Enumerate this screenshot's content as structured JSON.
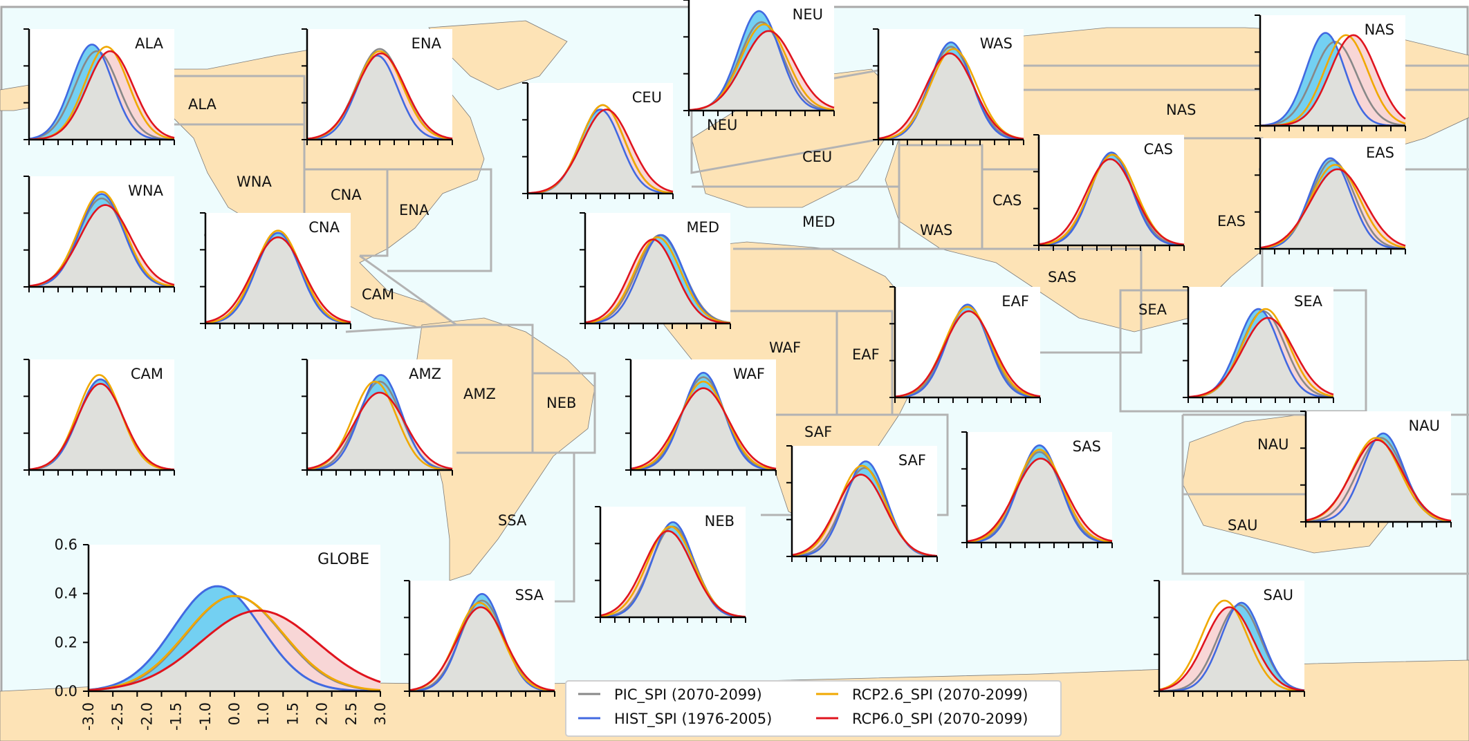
{
  "colors": {
    "ocean": "#eefcfd",
    "land": "#fde3b6",
    "region_border": "#b3b3b3",
    "frame": "#a9a9a9",
    "PIC_SPI": "#888888",
    "HIST_SPI": "#4169e1",
    "RCP2.6_SPI": "#f0a800",
    "RCP6.0_SPI": "#e0141e",
    "hist_fill": "#5ac8f0",
    "future_fill": "#f5c8c8",
    "overlap_fill": "#dfe0dc"
  },
  "legend": {
    "items": [
      {
        "key": "PIC_SPI",
        "label": "PIC_SPI (2070-2099)"
      },
      {
        "key": "HIST_SPI",
        "label": "HIST_SPI (1976-2005)"
      },
      {
        "key": "RCP2.6_SPI",
        "label": "RCP2.6_SPI (2070-2099)"
      },
      {
        "key": "RCP6.0_SPI",
        "label": "RCP6.0_SPI (2070-2099)"
      }
    ]
  },
  "map_labels": [
    "ALA",
    "WNA",
    "CNA",
    "ENA",
    "CAM",
    "AMZ",
    "NEB",
    "SSA",
    "NEU",
    "CEU",
    "MED",
    "WAF",
    "EAF",
    "SAF",
    "WAS",
    "CAS",
    "SAS",
    "EAS",
    "SEA",
    "NAS",
    "NAU",
    "SAU"
  ],
  "chart_data": [
    {
      "type": "line",
      "title": "GLOBE",
      "xlim": [
        -3.0,
        3.0
      ],
      "ylim": [
        0,
        0.6
      ],
      "xticks": [
        "-3.0",
        "-2.5",
        "-2.0",
        "-1.5",
        "-1.0",
        "0.0",
        "1.0",
        "1.5",
        "2.0",
        "2.5",
        "3.0"
      ],
      "yticks": [
        "0.0",
        "0.2",
        "0.4",
        "0.6"
      ],
      "series": [
        {
          "name": "PIC_SPI (2070-2099)",
          "peak_x": 0.0,
          "peak_y": 0.39,
          "width": 0.98
        },
        {
          "name": "HIST_SPI (1976-2005)",
          "peak_x": -0.35,
          "peak_y": 0.43,
          "width": 0.9
        },
        {
          "name": "RCP2.6_SPI (2070-2099)",
          "peak_x": 0.0,
          "peak_y": 0.39,
          "width": 1.0
        },
        {
          "name": "RCP6.0_SPI (2070-2099)",
          "peak_x": 0.5,
          "peak_y": 0.33,
          "width": 1.2
        }
      ]
    },
    {
      "type": "line",
      "title": "ALA",
      "series": [
        {
          "name": "PIC_SPI (2070-2099)",
          "peak_x": -0.2,
          "peak_y": 0.4,
          "width": 0.9
        },
        {
          "name": "HIST_SPI (1976-2005)",
          "peak_x": -0.4,
          "peak_y": 0.43,
          "width": 0.85
        },
        {
          "name": "RCP2.6_SPI (2070-2099)",
          "peak_x": 0.2,
          "peak_y": 0.42,
          "width": 0.9
        },
        {
          "name": "RCP6.0_SPI (2070-2099)",
          "peak_x": 0.35,
          "peak_y": 0.4,
          "width": 0.95
        }
      ]
    },
    {
      "type": "line",
      "title": "ENA",
      "series": [
        {
          "name": "PIC_SPI (2070-2099)",
          "peak_x": 0.0,
          "peak_y": 0.41,
          "width": 0.95
        },
        {
          "name": "HIST_SPI (1976-2005)",
          "peak_x": -0.1,
          "peak_y": 0.38,
          "width": 0.85
        },
        {
          "name": "RCP2.6_SPI (2070-2099)",
          "peak_x": 0.0,
          "peak_y": 0.4,
          "width": 0.95
        },
        {
          "name": "RCP6.0_SPI (2070-2099)",
          "peak_x": 0.05,
          "peak_y": 0.39,
          "width": 1.0
        }
      ]
    },
    {
      "type": "line",
      "title": "CEU",
      "series": [
        {
          "name": "PIC_SPI (2070-2099)",
          "peak_x": 0.1,
          "peak_y": 0.4,
          "width": 0.9
        },
        {
          "name": "HIST_SPI (1976-2005)",
          "peak_x": 0.0,
          "peak_y": 0.38,
          "width": 0.85
        },
        {
          "name": "RCP2.6_SPI (2070-2099)",
          "peak_x": 0.1,
          "peak_y": 0.4,
          "width": 0.9
        },
        {
          "name": "RCP6.0_SPI (2070-2099)",
          "peak_x": 0.25,
          "peak_y": 0.38,
          "width": 1.0
        }
      ]
    },
    {
      "type": "line",
      "title": "NEU",
      "series": [
        {
          "name": "PIC_SPI (2070-2099)",
          "peak_x": 0.0,
          "peak_y": 0.4,
          "width": 0.9
        },
        {
          "name": "HIST_SPI (1976-2005)",
          "peak_x": -0.1,
          "peak_y": 0.45,
          "width": 0.85
        },
        {
          "name": "RCP2.6_SPI (2070-2099)",
          "peak_x": 0.1,
          "peak_y": 0.39,
          "width": 0.95
        },
        {
          "name": "RCP6.0_SPI (2070-2099)",
          "peak_x": 0.3,
          "peak_y": 0.36,
          "width": 1.05
        }
      ]
    },
    {
      "type": "line",
      "title": "WAS",
      "series": [
        {
          "name": "PIC_SPI (2070-2099)",
          "peak_x": 0.0,
          "peak_y": 0.42,
          "width": 0.9
        },
        {
          "name": "HIST_SPI (1976-2005)",
          "peak_x": 0.0,
          "peak_y": 0.44,
          "width": 0.85
        },
        {
          "name": "RCP2.6_SPI (2070-2099)",
          "peak_x": 0.1,
          "peak_y": 0.41,
          "width": 0.95
        },
        {
          "name": "RCP6.0_SPI (2070-2099)",
          "peak_x": -0.05,
          "peak_y": 0.39,
          "width": 1.0
        }
      ]
    },
    {
      "type": "line",
      "title": "NAS",
      "series": [
        {
          "name": "PIC_SPI (2070-2099)",
          "peak_x": 0.1,
          "peak_y": 0.38,
          "width": 0.9
        },
        {
          "name": "HIST_SPI (1976-2005)",
          "peak_x": -0.3,
          "peak_y": 0.42,
          "width": 0.8
        },
        {
          "name": "RCP2.6_SPI (2070-2099)",
          "peak_x": 0.55,
          "peak_y": 0.41,
          "width": 0.9
        },
        {
          "name": "RCP6.0_SPI (2070-2099)",
          "peak_x": 0.85,
          "peak_y": 0.41,
          "width": 0.95
        }
      ]
    },
    {
      "type": "line",
      "title": "WNA",
      "series": [
        {
          "name": "PIC_SPI (2070-2099)",
          "peak_x": 0.0,
          "peak_y": 0.4,
          "width": 0.95
        },
        {
          "name": "HIST_SPI (1976-2005)",
          "peak_x": 0.0,
          "peak_y": 0.42,
          "width": 0.9
        },
        {
          "name": "RCP2.6_SPI (2070-2099)",
          "peak_x": 0.0,
          "peak_y": 0.43,
          "width": 0.95
        },
        {
          "name": "RCP6.0_SPI (2070-2099)",
          "peak_x": 0.15,
          "peak_y": 0.37,
          "width": 1.05
        }
      ]
    },
    {
      "type": "line",
      "title": "CNA",
      "series": [
        {
          "name": "PIC_SPI (2070-2099)",
          "peak_x": 0.0,
          "peak_y": 0.41,
          "width": 0.95
        },
        {
          "name": "HIST_SPI (1976-2005)",
          "peak_x": 0.0,
          "peak_y": 0.41,
          "width": 0.9
        },
        {
          "name": "RCP2.6_SPI (2070-2099)",
          "peak_x": 0.0,
          "peak_y": 0.42,
          "width": 0.95
        },
        {
          "name": "RCP6.0_SPI (2070-2099)",
          "peak_x": 0.0,
          "peak_y": 0.39,
          "width": 1.05
        }
      ]
    },
    {
      "type": "line",
      "title": "MED",
      "series": [
        {
          "name": "PIC_SPI (2070-2099)",
          "peak_x": 0.1,
          "peak_y": 0.4,
          "width": 0.95
        },
        {
          "name": "HIST_SPI (1976-2005)",
          "peak_x": 0.15,
          "peak_y": 0.4,
          "width": 0.9
        },
        {
          "name": "RCP2.6_SPI (2070-2099)",
          "peak_x": 0.0,
          "peak_y": 0.39,
          "width": 0.95
        },
        {
          "name": "RCP6.0_SPI (2070-2099)",
          "peak_x": -0.2,
          "peak_y": 0.38,
          "width": 0.95
        }
      ]
    },
    {
      "type": "line",
      "title": "CAS",
      "series": [
        {
          "name": "PIC_SPI (2070-2099)",
          "peak_x": 0.0,
          "peak_y": 0.41,
          "width": 0.9
        },
        {
          "name": "HIST_SPI (1976-2005)",
          "peak_x": 0.0,
          "peak_y": 0.42,
          "width": 0.85
        },
        {
          "name": "RCP2.6_SPI (2070-2099)",
          "peak_x": 0.05,
          "peak_y": 0.41,
          "width": 0.95
        },
        {
          "name": "RCP6.0_SPI (2070-2099)",
          "peak_x": -0.05,
          "peak_y": 0.39,
          "width": 1.0
        }
      ]
    },
    {
      "type": "line",
      "title": "EAS",
      "series": [
        {
          "name": "PIC_SPI (2070-2099)",
          "peak_x": 0.0,
          "peak_y": 0.4,
          "width": 0.9
        },
        {
          "name": "HIST_SPI (1976-2005)",
          "peak_x": -0.1,
          "peak_y": 0.41,
          "width": 0.85
        },
        {
          "name": "RCP2.6_SPI (2070-2099)",
          "peak_x": 0.1,
          "peak_y": 0.38,
          "width": 1.0
        },
        {
          "name": "RCP6.0_SPI (2070-2099)",
          "peak_x": 0.2,
          "peak_y": 0.36,
          "width": 1.1
        }
      ]
    },
    {
      "type": "line",
      "title": "CAM",
      "series": [
        {
          "name": "PIC_SPI (2070-2099)",
          "peak_x": -0.05,
          "peak_y": 0.41,
          "width": 0.9
        },
        {
          "name": "HIST_SPI (1976-2005)",
          "peak_x": -0.05,
          "peak_y": 0.41,
          "width": 0.9
        },
        {
          "name": "RCP2.6_SPI (2070-2099)",
          "peak_x": -0.1,
          "peak_y": 0.43,
          "width": 0.9
        },
        {
          "name": "RCP6.0_SPI (2070-2099)",
          "peak_x": -0.05,
          "peak_y": 0.39,
          "width": 0.95
        }
      ]
    },
    {
      "type": "line",
      "title": "AMZ",
      "series": [
        {
          "name": "PIC_SPI (2070-2099)",
          "peak_x": 0.0,
          "peak_y": 0.4,
          "width": 0.9
        },
        {
          "name": "HIST_SPI (1976-2005)",
          "peak_x": 0.05,
          "peak_y": 0.43,
          "width": 0.85
        },
        {
          "name": "RCP2.6_SPI (2070-2099)",
          "peak_x": -0.2,
          "peak_y": 0.4,
          "width": 0.9
        },
        {
          "name": "RCP6.0_SPI (2070-2099)",
          "peak_x": 0.0,
          "peak_y": 0.35,
          "width": 1.05
        }
      ]
    },
    {
      "type": "line",
      "title": "WAF",
      "series": [
        {
          "name": "PIC_SPI (2070-2099)",
          "peak_x": 0.0,
          "peak_y": 0.42,
          "width": 0.9
        },
        {
          "name": "HIST_SPI (1976-2005)",
          "peak_x": 0.0,
          "peak_y": 0.44,
          "width": 0.85
        },
        {
          "name": "RCP2.6_SPI (2070-2099)",
          "peak_x": 0.0,
          "peak_y": 0.4,
          "width": 0.95
        },
        {
          "name": "RCP6.0_SPI (2070-2099)",
          "peak_x": 0.0,
          "peak_y": 0.37,
          "width": 1.05
        }
      ]
    },
    {
      "type": "line",
      "title": "EAF",
      "series": [
        {
          "name": "PIC_SPI (2070-2099)",
          "peak_x": 0.0,
          "peak_y": 0.41,
          "width": 0.9
        },
        {
          "name": "HIST_SPI (1976-2005)",
          "peak_x": 0.0,
          "peak_y": 0.42,
          "width": 0.85
        },
        {
          "name": "RCP2.6_SPI (2070-2099)",
          "peak_x": 0.0,
          "peak_y": 0.41,
          "width": 0.95
        },
        {
          "name": "RCP6.0_SPI (2070-2099)",
          "peak_x": 0.05,
          "peak_y": 0.39,
          "width": 1.0
        }
      ]
    },
    {
      "type": "line",
      "title": "SEA",
      "series": [
        {
          "name": "PIC_SPI (2070-2099)",
          "peak_x": 0.1,
          "peak_y": 0.39,
          "width": 0.9
        },
        {
          "name": "HIST_SPI (1976-2005)",
          "peak_x": -0.1,
          "peak_y": 0.4,
          "width": 0.85
        },
        {
          "name": "RCP2.6_SPI (2070-2099)",
          "peak_x": 0.2,
          "peak_y": 0.4,
          "width": 0.95
        },
        {
          "name": "RCP6.0_SPI (2070-2099)",
          "peak_x": 0.3,
          "peak_y": 0.36,
          "width": 1.05
        }
      ]
    },
    {
      "type": "line",
      "title": "NAU",
      "series": [
        {
          "name": "PIC_SPI (2070-2099)",
          "peak_x": 0.1,
          "peak_y": 0.38,
          "width": 0.95
        },
        {
          "name": "HIST_SPI (1976-2005)",
          "peak_x": 0.2,
          "peak_y": 0.4,
          "width": 0.85
        },
        {
          "name": "RCP2.6_SPI (2070-2099)",
          "peak_x": -0.1,
          "peak_y": 0.38,
          "width": 1.0
        },
        {
          "name": "RCP6.0_SPI (2070-2099)",
          "peak_x": -0.05,
          "peak_y": 0.37,
          "width": 1.05
        }
      ]
    },
    {
      "type": "line",
      "title": "SAF",
      "series": [
        {
          "name": "PIC_SPI (2070-2099)",
          "peak_x": 0.0,
          "peak_y": 0.4,
          "width": 0.9
        },
        {
          "name": "HIST_SPI (1976-2005)",
          "peak_x": 0.05,
          "peak_y": 0.43,
          "width": 0.85
        },
        {
          "name": "RCP2.6_SPI (2070-2099)",
          "peak_x": -0.1,
          "peak_y": 0.41,
          "width": 0.95
        },
        {
          "name": "RCP6.0_SPI (2070-2099)",
          "peak_x": -0.15,
          "peak_y": 0.37,
          "width": 1.0
        }
      ]
    },
    {
      "type": "line",
      "title": "SAS",
      "series": [
        {
          "name": "PIC_SPI (2070-2099)",
          "peak_x": 0.0,
          "peak_y": 0.41,
          "width": 0.9
        },
        {
          "name": "HIST_SPI (1976-2005)",
          "peak_x": 0.0,
          "peak_y": 0.44,
          "width": 0.85
        },
        {
          "name": "RCP2.6_SPI (2070-2099)",
          "peak_x": 0.0,
          "peak_y": 0.42,
          "width": 0.95
        },
        {
          "name": "RCP6.0_SPI (2070-2099)",
          "peak_x": 0.05,
          "peak_y": 0.38,
          "width": 1.05
        }
      ]
    },
    {
      "type": "line",
      "title": "NEB",
      "series": [
        {
          "name": "PIC_SPI (2070-2099)",
          "peak_x": 0.0,
          "peak_y": 0.41,
          "width": 0.9
        },
        {
          "name": "HIST_SPI (1976-2005)",
          "peak_x": 0.0,
          "peak_y": 0.43,
          "width": 0.85
        },
        {
          "name": "RCP2.6_SPI (2070-2099)",
          "peak_x": -0.1,
          "peak_y": 0.41,
          "width": 0.95
        },
        {
          "name": "RCP6.0_SPI (2070-2099)",
          "peak_x": -0.2,
          "peak_y": 0.39,
          "width": 1.0
        }
      ]
    },
    {
      "type": "line",
      "title": "SSA",
      "series": [
        {
          "name": "PIC_SPI (2070-2099)",
          "peak_x": 0.0,
          "peak_y": 0.41,
          "width": 0.9
        },
        {
          "name": "HIST_SPI (1976-2005)",
          "peak_x": 0.0,
          "peak_y": 0.44,
          "width": 0.85
        },
        {
          "name": "RCP2.6_SPI (2070-2099)",
          "peak_x": -0.1,
          "peak_y": 0.4,
          "width": 0.95
        },
        {
          "name": "RCP6.0_SPI (2070-2099)",
          "peak_x": -0.05,
          "peak_y": 0.38,
          "width": 1.0
        }
      ]
    },
    {
      "type": "line",
      "title": "SAU",
      "series": [
        {
          "name": "PIC_SPI (2070-2099)",
          "peak_x": 0.3,
          "peak_y": 0.39,
          "width": 0.9
        },
        {
          "name": "HIST_SPI (1976-2005)",
          "peak_x": 0.4,
          "peak_y": 0.4,
          "width": 0.85
        },
        {
          "name": "RCP2.6_SPI (2070-2099)",
          "peak_x": -0.3,
          "peak_y": 0.41,
          "width": 0.95
        },
        {
          "name": "RCP6.0_SPI (2070-2099)",
          "peak_x": -0.1,
          "peak_y": 0.38,
          "width": 1.0
        }
      ]
    }
  ]
}
